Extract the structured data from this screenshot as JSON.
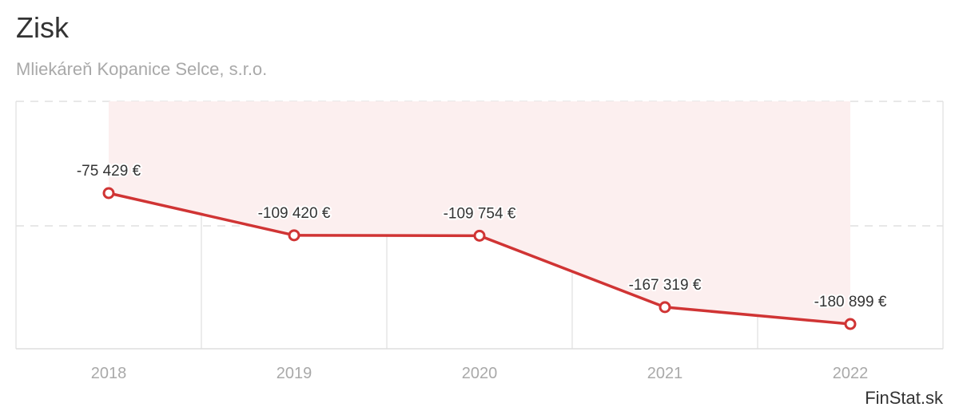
{
  "title": "Zisk",
  "subtitle": "Mliekáreň Kopanice Selce, s.r.o.",
  "watermark": "FinStat.sk",
  "colors": {
    "line": "#d03434",
    "area": "#fcefef",
    "axis_labels": "#a9a9a9",
    "grid": "#e0e0e0"
  },
  "chart_data": {
    "type": "line",
    "title": "Zisk",
    "subtitle": "Mliekáreň Kopanice Selce, s.r.o.",
    "categories": [
      "2018",
      "2019",
      "2020",
      "2021",
      "2022"
    ],
    "series": [
      {
        "values": [
          -75429,
          -109420,
          -109754,
          -167319,
          -180899
        ],
        "labels": [
          "-75 429 €",
          "-109 420 €",
          "-109 754 €",
          "-167 319 €",
          "-180 899 €"
        ]
      }
    ],
    "ylim": [
      -200000,
      0
    ],
    "grid": true,
    "legend": "none"
  }
}
